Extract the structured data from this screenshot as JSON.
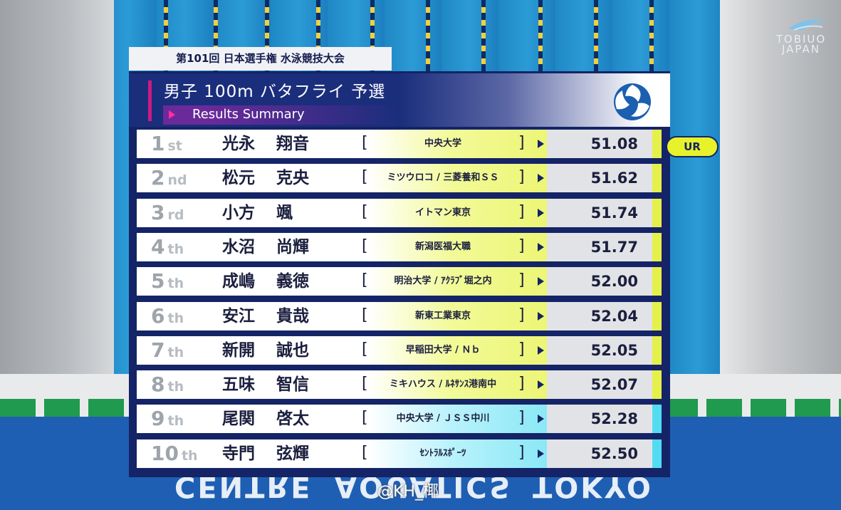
{
  "meet_title": "第101回 日本選手権 水泳競技大会",
  "event_title": "男子 100m バタフライ 予選",
  "subtitle": "Results Summary",
  "broadcaster_logo": {
    "text": "TOBIUO JAPAN",
    "icon": "fish-swoosh-logo"
  },
  "federation_logo": {
    "icon": "swim-federation-swirl-logo"
  },
  "venue_banner": [
    "CENTRE",
    "AQUATICS",
    "TOKYO"
  ],
  "watermark": "@KH_椰",
  "record_tag": {
    "label": "UR",
    "row": 1
  },
  "colors": {
    "board_navy": "#142466",
    "qualified_yellow": "#e6f04a",
    "reserve_cyan": "#53dcf1",
    "accent_magenta": "#cc1a82"
  },
  "results": [
    {
      "rank": "1",
      "suffix": "st",
      "family": "光永",
      "given": "翔音",
      "team": "中央大学",
      "time": "51.08",
      "status": "yellow"
    },
    {
      "rank": "2",
      "suffix": "nd",
      "family": "松元",
      "given": "克央",
      "team": "ミツウロコ / 三菱養和ＳＳ",
      "time": "51.62",
      "status": "yellow"
    },
    {
      "rank": "3",
      "suffix": "rd",
      "family": "小方",
      "given": "颯",
      "team": "イトマン東京",
      "time": "51.74",
      "status": "yellow"
    },
    {
      "rank": "4",
      "suffix": "th",
      "family": "水沼",
      "given": "尚輝",
      "team": "新潟医福大職",
      "time": "51.77",
      "status": "yellow"
    },
    {
      "rank": "5",
      "suffix": "th",
      "family": "成嶋",
      "given": "義徳",
      "team": "明治大学 / ｱｸﾗﾌﾞ堀之内",
      "time": "52.00",
      "status": "yellow"
    },
    {
      "rank": "6",
      "suffix": "th",
      "family": "安江",
      "given": "貴哉",
      "team": "新東工業東京",
      "time": "52.04",
      "status": "yellow"
    },
    {
      "rank": "7",
      "suffix": "th",
      "family": "新開",
      "given": "誠也",
      "team": "早稲田大学 / Ｎｂ",
      "time": "52.05",
      "status": "yellow"
    },
    {
      "rank": "8",
      "suffix": "th",
      "family": "五味",
      "given": "智信",
      "team": "ミキハウス / ﾙﾈｻﾝｽ港南中",
      "time": "52.07",
      "status": "yellow"
    },
    {
      "rank": "9",
      "suffix": "th",
      "family": "尾関",
      "given": "啓太",
      "team": "中央大学 / ＪＳＳ中川",
      "time": "52.28",
      "status": "cyan"
    },
    {
      "rank": "10",
      "suffix": "th",
      "family": "寺門",
      "given": "弦輝",
      "team": "ｾﾝﾄﾗﾙｽﾎﾟｰﾂ",
      "time": "52.50",
      "status": "cyan"
    }
  ]
}
